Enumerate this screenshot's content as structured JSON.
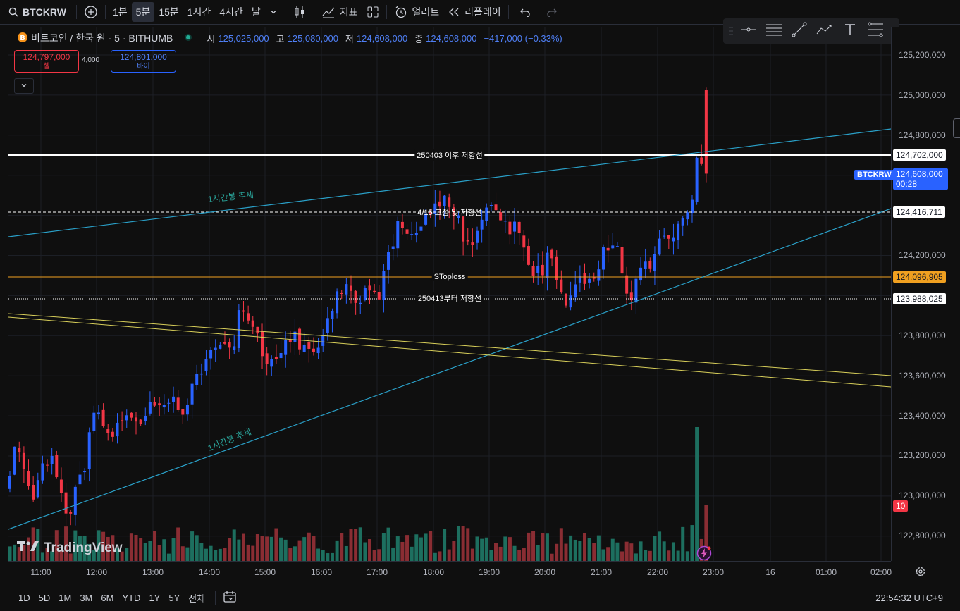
{
  "toolbar": {
    "symbol": "BTCKRW",
    "intervals": [
      "1분",
      "5분",
      "15분",
      "1시간",
      "4시간",
      "날"
    ],
    "active_interval": "5분",
    "indicators_label": "지표",
    "alert_label": "얼러트",
    "replay_label": "리플레이"
  },
  "legend": {
    "title": "비트코인 / 한국 원 · 5 · BITHUMB",
    "o_key": "시",
    "o": "125,025,000",
    "h_key": "고",
    "h": "125,080,000",
    "l_key": "저",
    "l": "124,608,000",
    "c_key": "종",
    "c": "124,608,000",
    "change": "−417,000 (−0.33%)"
  },
  "trade": {
    "sell_price": "124,797,000",
    "sell_label": "셀",
    "spread": "4,000",
    "buy_price": "124,801,000",
    "buy_label": "바이"
  },
  "price_axis": {
    "ticks": [
      "125,200,000",
      "125,000,000",
      "124,800,000",
      "124,200,000",
      "123,800,000",
      "123,600,000",
      "123,400,000",
      "123,200,000",
      "123,000,000",
      "122,800,000"
    ],
    "labels": {
      "line1": "124,702,000",
      "current_symbol": "BTCKRW",
      "current_price": "124,608,000",
      "countdown": "00:28",
      "line2": "124,416,711",
      "stoploss": "124,096,905",
      "line3": "123,988,025",
      "volume": "10"
    }
  },
  "time_axis": [
    "11:00",
    "12:00",
    "13:00",
    "14:00",
    "15:00",
    "16:00",
    "17:00",
    "18:00",
    "19:00",
    "20:00",
    "21:00",
    "22:00",
    "23:00",
    "16",
    "01:00",
    "02:00"
  ],
  "annotations": {
    "line1": "250403 이후 저항선",
    "line2": "4/15 고점 및 저항선",
    "stoploss": "SToploss",
    "line3": "250413부터 저항선",
    "trend_upper": "1시간봉 추세",
    "trend_lower": "1시간봉 추세"
  },
  "colors": {
    "up": "#2962ff",
    "down": "#f23645",
    "vol_up": "#1d6f5f",
    "vol_down": "#8a2d33",
    "trend": "#2aa0c8",
    "yellow": "#d8cf5a",
    "orange": "#f0a020"
  },
  "bottom": {
    "ranges": [
      "1D",
      "5D",
      "1M",
      "3M",
      "6M",
      "YTD",
      "1Y",
      "5Y",
      "전체"
    ],
    "clock": "22:54:32 UTC+9"
  },
  "logo_text": "TradingView"
}
